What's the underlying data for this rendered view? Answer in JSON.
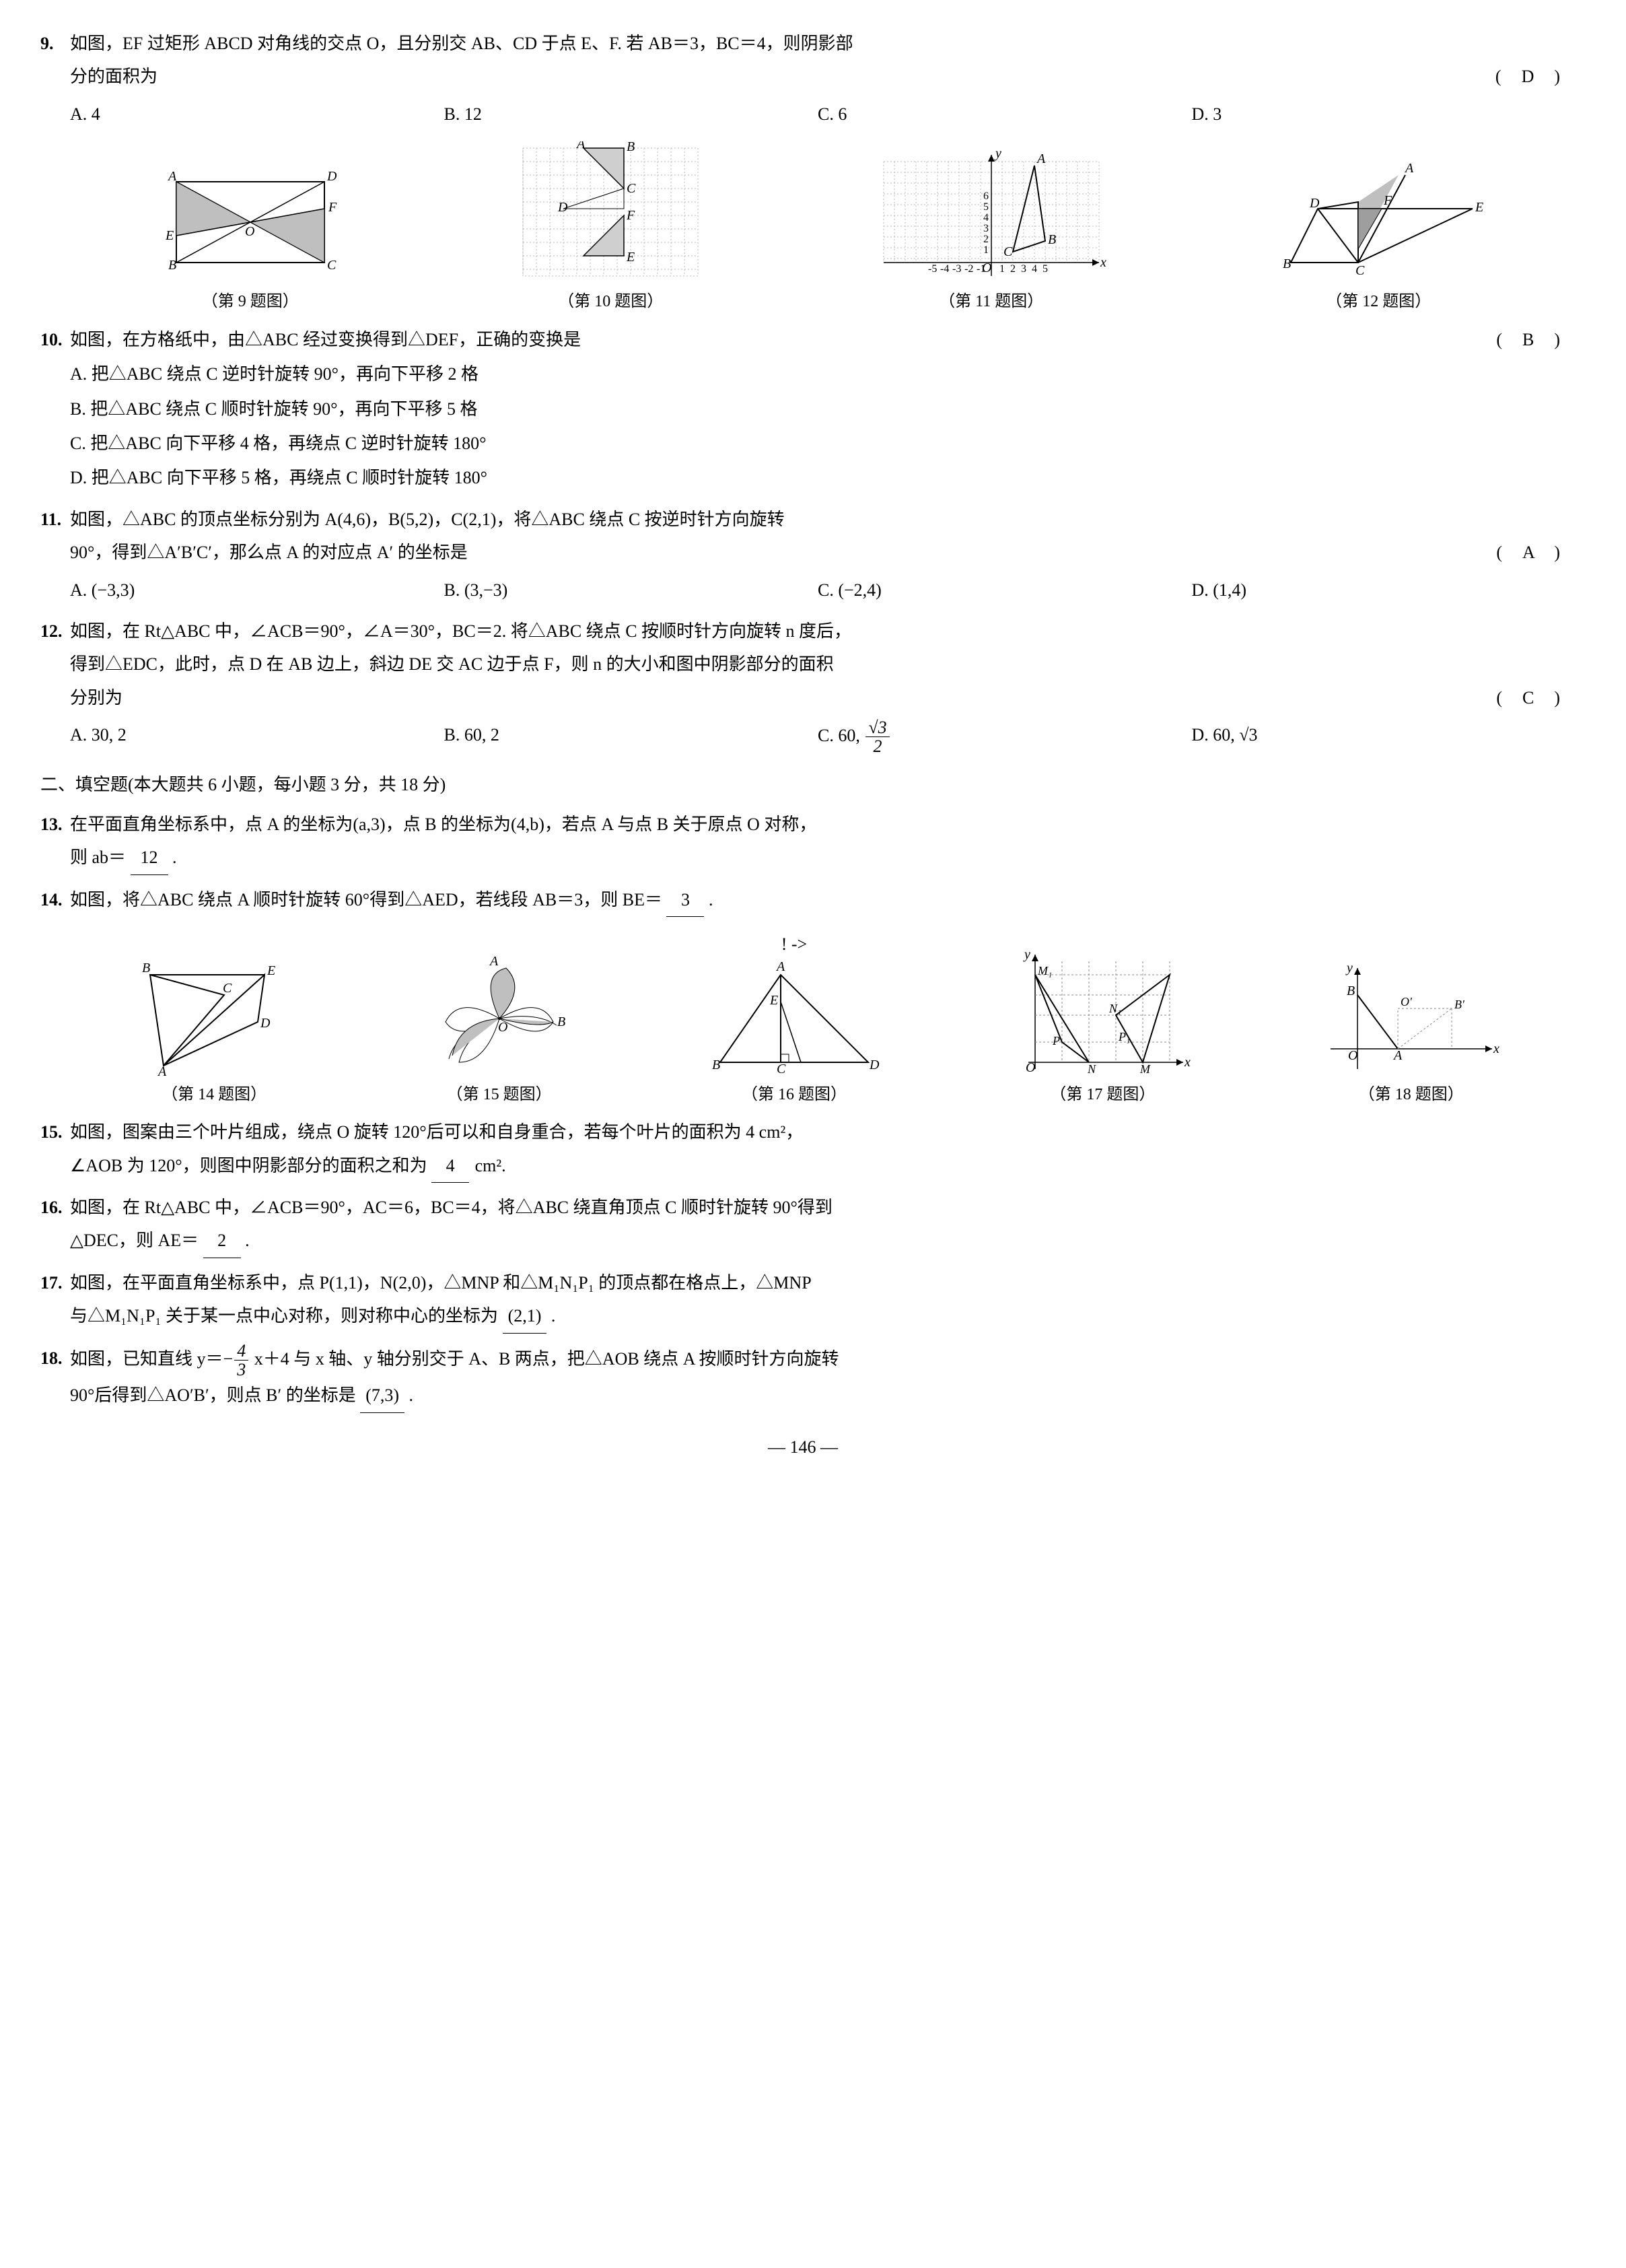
{
  "q9": {
    "num": "9.",
    "text": "如图，EF 过矩形 ABCD 对角线的交点 O，且分别交 AB、CD 于点 E、F. 若 AB＝3，BC＝4，则阴影部",
    "text2": "分的面积为",
    "answer": "(　D　)",
    "opts": {
      "A": "A. 4",
      "B": "B. 12",
      "C": "C. 6",
      "D": "D. 3"
    }
  },
  "figcap": {
    "f9": "（第 9 题图）",
    "f10": "（第 10 题图）",
    "f11": "（第 11 题图）",
    "f12": "（第 12 题图）",
    "f14": "（第 14 题图）",
    "f15": "（第 15 题图）",
    "f16": "（第 16 题图）",
    "f17": "（第 17 题图）",
    "f18": "（第 18 题图）"
  },
  "q10": {
    "num": "10.",
    "text": "如图，在方格纸中，由△ABC 经过变换得到△DEF，正确的变换是",
    "answer": "(　B　)",
    "opts": {
      "A": "A. 把△ABC 绕点 C 逆时针旋转 90°，再向下平移 2 格",
      "B": "B. 把△ABC 绕点 C 顺时针旋转 90°，再向下平移 5 格",
      "C": "C. 把△ABC 向下平移 4 格，再绕点 C 逆时针旋转 180°",
      "D": "D. 把△ABC 向下平移 5 格，再绕点 C 顺时针旋转 180°"
    }
  },
  "q11": {
    "num": "11.",
    "text": "如图，△ABC 的顶点坐标分别为 A(4,6)，B(5,2)，C(2,1)，将△ABC 绕点 C 按逆时针方向旋转",
    "text2": "90°，得到△A′B′C′，那么点 A 的对应点 A′ 的坐标是",
    "answer": "(　A　)",
    "opts": {
      "A": "A. (−3,3)",
      "B": "B. (3,−3)",
      "C": "C. (−2,4)",
      "D": "D. (1,4)"
    }
  },
  "q12": {
    "num": "12.",
    "text": "如图，在 Rt△ABC 中，∠ACB＝90°，∠A＝30°，BC＝2. 将△ABC 绕点 C 按顺时针方向旋转 n 度后，",
    "text2": "得到△EDC，此时，点 D 在 AB 边上，斜边 DE 交 AC 边于点 F，则 n 的大小和图中阴影部分的面积",
    "text3": "分别为",
    "answer": "(　C　)",
    "opts": {
      "A": "A. 30, 2",
      "B": "B. 60, 2",
      "C_pre": "C. 60, ",
      "C_num": "√3",
      "C_den": "2",
      "D_pre": "D. 60, ",
      "D_val": "√3"
    }
  },
  "section2": "二、填空题(本大题共 6 小题，每小题 3 分，共 18 分)",
  "q13": {
    "num": "13.",
    "text": "在平面直角坐标系中，点 A 的坐标为(a,3)，点 B 的坐标为(4,b)，若点 A 与点 B 关于原点 O 对称，",
    "text2_pre": "则 ab＝",
    "blank": "12",
    "text2_post": "."
  },
  "q14": {
    "num": "14.",
    "text_pre": "如图，将△ABC 绕点 A 顺时针旋转 60°得到△AED，若线段 AB＝3，则 BE＝",
    "blank": "3",
    "text_post": "."
  },
  "q15": {
    "num": "15.",
    "text": "如图，图案由三个叶片组成，绕点 O 旋转 120°后可以和自身重合，若每个叶片的面积为 4 cm²，",
    "text2_pre": "∠AOB 为 120°，则图中阴影部分的面积之和为",
    "blank": "4",
    "unit": "cm².",
    "text2_post": ""
  },
  "q16": {
    "num": "16.",
    "text": "如图，在 Rt△ABC 中，∠ACB＝90°，AC＝6，BC＝4，将△ABC 绕直角顶点 C 顺时针旋转 90°得到",
    "text2_pre": "△DEC，则 AE＝",
    "blank": "2",
    "text2_post": "."
  },
  "q17": {
    "num": "17.",
    "text": "如图，在平面直角坐标系中，点 P(1,1)，N(2,0)，△MNP 和△M₁N₁P₁ 的顶点都在格点上，△MNP",
    "text2_pre": "与△M₁N₁P₁ 关于某一点中心对称，则对称中心的坐标为",
    "blank": "(2,1)",
    "text2_post": "."
  },
  "q18": {
    "num": "18.",
    "text_pre": "如图，已知直线 y＝",
    "frac_sign": "−",
    "frac_num": "4",
    "frac_den": "3",
    "text_mid": "x＋4 与 x 轴、y 轴分别交于 A、B 两点，把△AOB 绕点 A 按顺时针方向旋转",
    "text2_pre": "90°后得到△AO′B′，则点 B′ 的坐标是",
    "blank": "(7,3)",
    "text2_post": "."
  },
  "pagenum": "— 146 —",
  "colors": {
    "text": "#000000",
    "bg": "#ffffff",
    "grid": "#b8b8b8",
    "dash": "#888888",
    "fill": "#bfbfbf",
    "fill_dark": "#9e9e9e"
  }
}
